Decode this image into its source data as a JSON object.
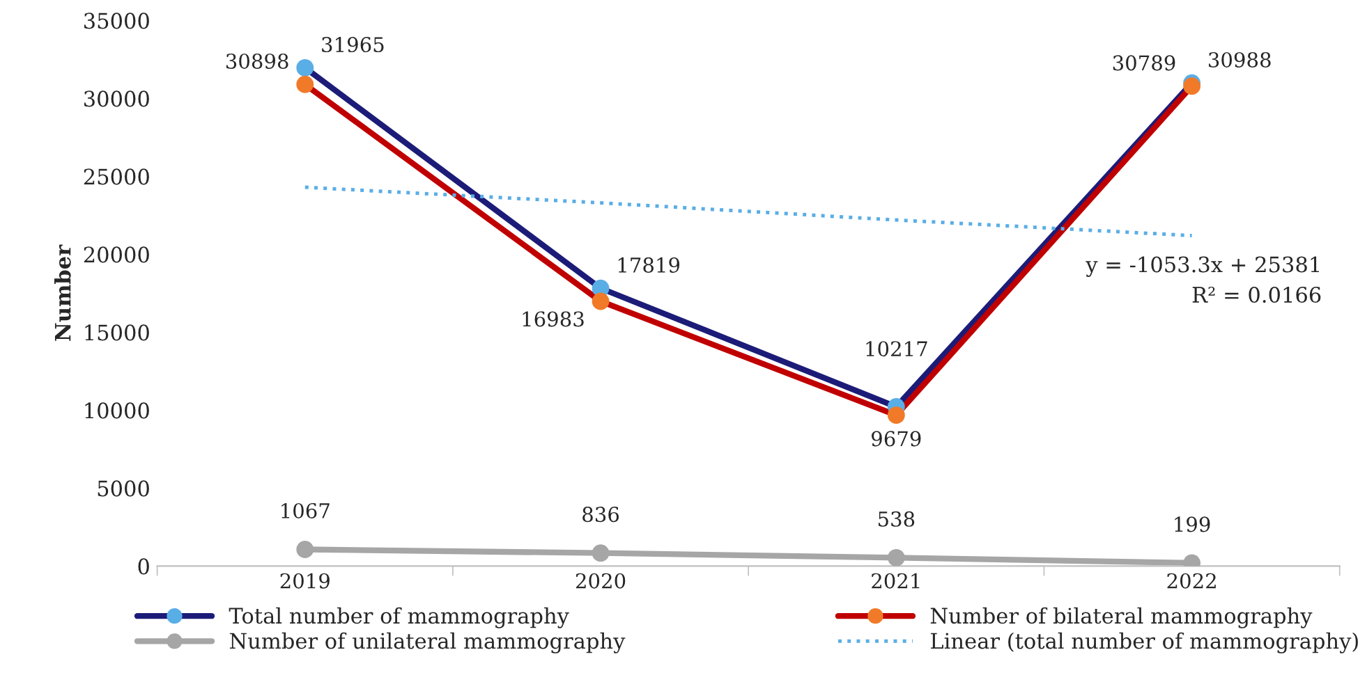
{
  "chart_data": {
    "type": "line",
    "ylabel": "Number",
    "categories": [
      "2019",
      "2020",
      "2021",
      "2022"
    ],
    "series": [
      {
        "name": "Total number of mammography",
        "color": "#1c1c78",
        "colors": [
          "#5aaee6",
          "#5aaee6",
          "#5aaee6",
          "#5aaee6"
        ],
        "values": [
          31965,
          17819,
          10217,
          30988
        ],
        "marker": "circle",
        "value_labels": [
          "31965",
          "17819",
          "10217",
          "30988"
        ]
      },
      {
        "name": "Number of bilateral mammography",
        "color": "#c00000",
        "colors": [
          "#f07a28",
          "#f07a28",
          "#f07a28",
          "#f07a28"
        ],
        "values": [
          30898,
          16983,
          9679,
          30789
        ],
        "marker": "circle",
        "value_labels": [
          "30898",
          "16983",
          "9679",
          "30789"
        ]
      },
      {
        "name": "Number of unilateral mammography",
        "color": "#a6a6a6",
        "colors": [
          "#a6a6a6",
          "#a6a6a6",
          "#a6a6a6",
          "#a6a6a6"
        ],
        "values": [
          1067,
          836,
          538,
          199
        ],
        "marker": "circle",
        "value_labels": [
          "1067",
          "836",
          "538",
          "199"
        ]
      },
      {
        "name": "Linear (total number of mammography)",
        "color": "#5aaee6",
        "values": [
          24300,
          23300,
          22200,
          21200
        ],
        "marker": "none",
        "line_style": "dotted"
      }
    ],
    "ylim": [
      0,
      35000
    ],
    "yticks": [
      0,
      5000,
      10000,
      15000,
      20000,
      25000,
      30000,
      35000
    ],
    "grid": false,
    "legend": "bottom",
    "annotations": [
      "y = -1053.3x + 25381",
      "R² = 0.0166"
    ]
  }
}
